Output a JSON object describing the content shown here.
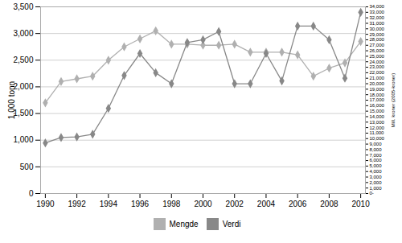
{
  "chart_data": {
    "type": "line",
    "x": [
      1990,
      1991,
      1992,
      1993,
      1994,
      1995,
      1996,
      1997,
      1998,
      1999,
      2000,
      2001,
      2002,
      2003,
      2004,
      2005,
      2006,
      2007,
      2008,
      2009,
      2010
    ],
    "xlim": [
      1989.7,
      2010.3
    ],
    "xticks": [
      1990,
      1992,
      1994,
      1996,
      1998,
      2000,
      2002,
      2004,
      2006,
      2008,
      2010
    ],
    "ylabel": "1,000 tonn",
    "ylim": [
      0,
      3500
    ],
    "yticks": [
      0,
      500,
      {
        "value": 1000,
        "label": "1,000"
      },
      {
        "value": 1500,
        "label": "1,500"
      },
      {
        "value": 2000,
        "label": "2,000"
      },
      {
        "value": 2500,
        "label": "2,500"
      },
      {
        "value": 3000,
        "label": "3,000"
      },
      {
        "value": 3500,
        "label": "3,500"
      }
    ],
    "y2label": "Mill. kroner (2005-kroner)",
    "y2lim": [
      0,
      34000
    ],
    "y2ticks": [
      {
        "value": 0,
        "label": "0-"
      },
      {
        "value": 1000,
        "label": "1,000"
      },
      {
        "value": 2000,
        "label": "2,000"
      },
      {
        "value": 3000,
        "label": "3,000"
      },
      {
        "value": 4000,
        "label": "4,000"
      },
      {
        "value": 5000,
        "label": "5,000"
      },
      {
        "value": 6000,
        "label": "6,000"
      },
      {
        "value": 7000,
        "label": "7,000"
      },
      {
        "value": 8000,
        "label": "8,000"
      },
      {
        "value": 9000,
        "label": "9,000"
      },
      {
        "value": 10000,
        "label": "10,000"
      },
      {
        "value": 11000,
        "label": "11,000"
      },
      {
        "value": 12000,
        "label": "12,000"
      },
      {
        "value": 13000,
        "label": "13,000"
      },
      {
        "value": 14000,
        "label": "14,000"
      },
      {
        "value": 15000,
        "label": "15,000"
      },
      {
        "value": 16000,
        "label": "16,000"
      },
      {
        "value": 17000,
        "label": "17,000"
      },
      {
        "value": 18000,
        "label": "18,000"
      },
      {
        "value": 19000,
        "label": "19,000"
      },
      {
        "value": 20000,
        "label": "20,000"
      },
      {
        "value": 21000,
        "label": "21,000"
      },
      {
        "value": 22000,
        "label": "22,000"
      },
      {
        "value": 23000,
        "label": "23,000"
      },
      {
        "value": 24000,
        "label": "24,000"
      },
      {
        "value": 25000,
        "label": "25,000"
      },
      {
        "value": 26000,
        "label": "26,000"
      },
      {
        "value": 27000,
        "label": "27,000"
      },
      {
        "value": 28000,
        "label": "28,000"
      },
      {
        "value": 29000,
        "label": "29,000"
      },
      {
        "value": 30000,
        "label": "30,000"
      },
      {
        "value": 31000,
        "label": "31,000"
      },
      {
        "value": 32000,
        "label": "32,000"
      },
      {
        "value": 33000,
        "label": "33,000"
      },
      {
        "value": 34000,
        "label": "34,000"
      }
    ],
    "grid": true,
    "legend": "bottom",
    "series": [
      {
        "name": "Mengde",
        "color": "#b0b0b0",
        "marker": "diamond",
        "values": [
          1700,
          2100,
          2150,
          2200,
          2500,
          2750,
          2900,
          3050,
          2800,
          2800,
          2780,
          2780,
          2800,
          2650,
          2650,
          2650,
          2600,
          2200,
          2350,
          2450,
          2850
        ]
      },
      {
        "name": "Verdi",
        "color": "#888888",
        "marker": "diamond",
        "axis": "y2",
        "values": [
          9200,
          10200,
          10300,
          10800,
          15500,
          21500,
          25500,
          22000,
          20000,
          27500,
          28000,
          29500,
          20000,
          20000,
          25500,
          20500,
          30500,
          30500,
          28000,
          21000,
          33000
        ]
      }
    ]
  }
}
